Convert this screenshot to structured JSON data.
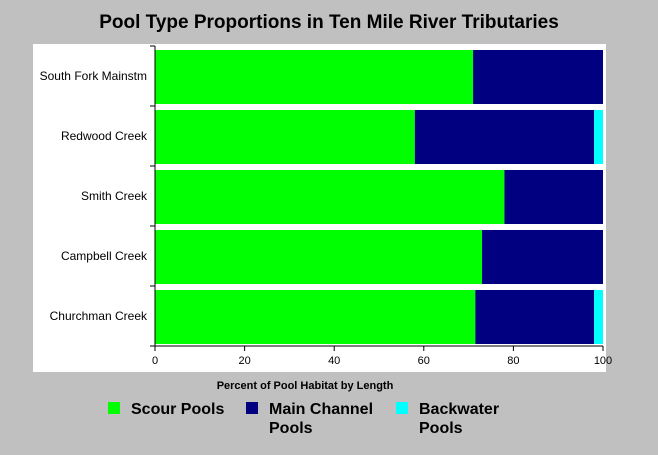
{
  "chart_data": {
    "type": "bar",
    "orientation": "horizontal",
    "stacked": true,
    "title": "Pool Type Proportions in Ten Mile River Tributaries",
    "xlabel": "Percent of Pool Habitat by Length",
    "ylabel": "",
    "xlim": [
      0,
      100
    ],
    "xticks": [
      0,
      20,
      40,
      60,
      80,
      100
    ],
    "grid": false,
    "legend_position": "bottom",
    "categories": [
      "South Fork Mainstm",
      "Redwood Creek",
      "Smith Creek",
      "Campbell Creek",
      "Churchman Creek"
    ],
    "series": [
      {
        "name": "Scour Pools",
        "color": "#00ff00",
        "values": [
          71,
          58,
          78,
          73,
          71.5
        ]
      },
      {
        "name": "Main Channel Pools",
        "color": "#000080",
        "values": [
          29,
          40,
          22,
          27,
          26.5
        ]
      },
      {
        "name": "Backwater Pools",
        "color": "#00ffff",
        "values": [
          0,
          2,
          0,
          0,
          2
        ]
      }
    ]
  },
  "legend_labels": [
    "Scour Pools",
    "Main Channel\nPools",
    "Backwater\nPools"
  ],
  "colors": {
    "background": "#c0c0c0",
    "plot_background": "#ffffff"
  }
}
